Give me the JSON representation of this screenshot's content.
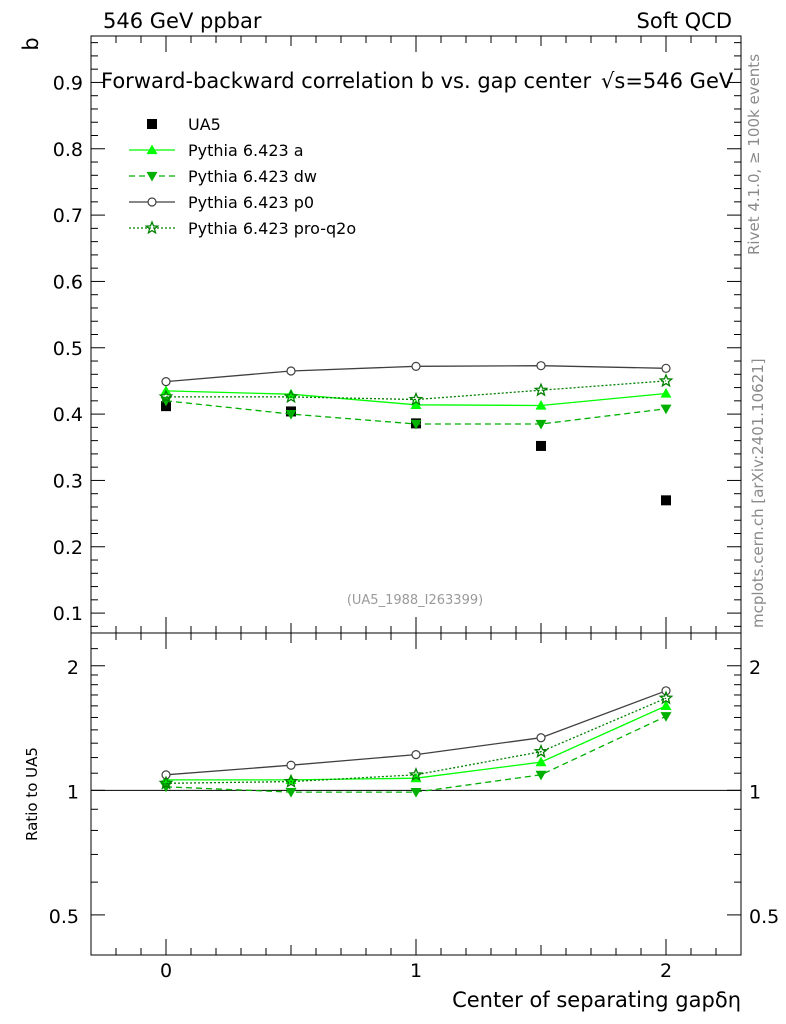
{
  "header": {
    "left": "546 GeV ppbar",
    "right": "Soft QCD"
  },
  "side": {
    "rivet": "Rivet 4.1.0, ≥ 100k events",
    "mcplots": "mcplots.cern.ch [arXiv:2401.10621]"
  },
  "colors": {
    "data": "#000000",
    "a": "#00ff00",
    "dw": "#00b000",
    "p0": "#404040",
    "pro_q2o": "#008000"
  },
  "chart_data": {
    "type": "line",
    "title": "Forward-backward correlation b  vs. gap center",
    "energy_label": "√s=546 GeV",
    "analysis_id": "(UA5_1988_I263399)",
    "xlabel": "Center of separating gapδη",
    "ylabel": "b",
    "ratio_ylabel": "Ratio to UA5",
    "xlim": [
      -0.3,
      2.3
    ],
    "ylim": [
      0.07,
      0.97
    ],
    "ratio_ylim": [
      0.4,
      2.4
    ],
    "x_ticks": [
      "0",
      "1",
      "2"
    ],
    "y_ticks": [
      "0.1",
      "0.2",
      "0.3",
      "0.4",
      "0.5",
      "0.6",
      "0.7",
      "0.8",
      "0.9"
    ],
    "ratio_ticks": [
      "0.5",
      "1",
      "2"
    ],
    "x": [
      0,
      0.5,
      1,
      1.5,
      2
    ],
    "series": [
      {
        "key": "data",
        "name": "UA5",
        "marker": "square",
        "line": "none",
        "values": [
          0.412,
          0.404,
          0.386,
          0.352,
          0.27
        ],
        "ratio": [
          1,
          1,
          1,
          1,
          1
        ]
      },
      {
        "key": "a",
        "name": "Pythia 6.423 a",
        "marker": "triangle-up",
        "line": "solid",
        "values": [
          0.435,
          0.43,
          0.414,
          0.413,
          0.431
        ],
        "ratio": [
          1.06,
          1.06,
          1.07,
          1.17,
          1.6
        ]
      },
      {
        "key": "dw",
        "name": "Pythia 6.423 dw",
        "marker": "triangle-down",
        "line": "dashed",
        "values": [
          0.42,
          0.4,
          0.385,
          0.385,
          0.408
        ],
        "ratio": [
          1.02,
          0.99,
          0.99,
          1.09,
          1.51
        ]
      },
      {
        "key": "p0",
        "name": "Pythia 6.423 p0",
        "marker": "circle-open",
        "line": "solid",
        "values": [
          0.449,
          0.465,
          0.472,
          0.473,
          0.469
        ],
        "ratio": [
          1.09,
          1.15,
          1.22,
          1.34,
          1.74
        ]
      },
      {
        "key": "pro_q2o",
        "name": "Pythia 6.423 pro-q2o",
        "marker": "star",
        "line": "dotted",
        "values": [
          0.426,
          0.426,
          0.422,
          0.436,
          0.45
        ],
        "ratio": [
          1.04,
          1.05,
          1.09,
          1.24,
          1.67
        ]
      }
    ]
  }
}
